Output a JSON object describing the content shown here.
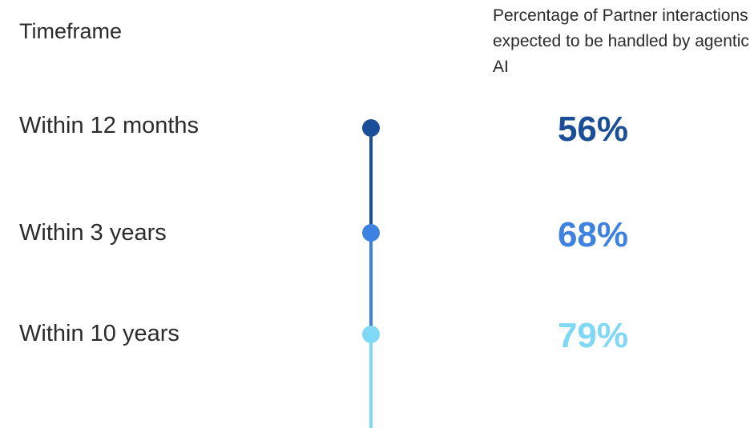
{
  "header": {
    "left_title": "Timeframe",
    "right_title": "Percentage of Partner interactions expected to be handled by agentic AI"
  },
  "chart_data": {
    "type": "table",
    "title": "",
    "categories": [
      "Within 12 months",
      "Within 3 years",
      "Within 10 years"
    ],
    "series": [
      {
        "name": "Percentage of Partner interactions expected to be handled by agentic AI",
        "values": [
          56,
          68,
          79
        ],
        "labels": [
          "56%",
          "68%",
          "79%"
        ]
      }
    ],
    "colors": [
      "#1a4e96",
      "#3d82e0",
      "#7fd8f6"
    ],
    "unit": "%"
  }
}
